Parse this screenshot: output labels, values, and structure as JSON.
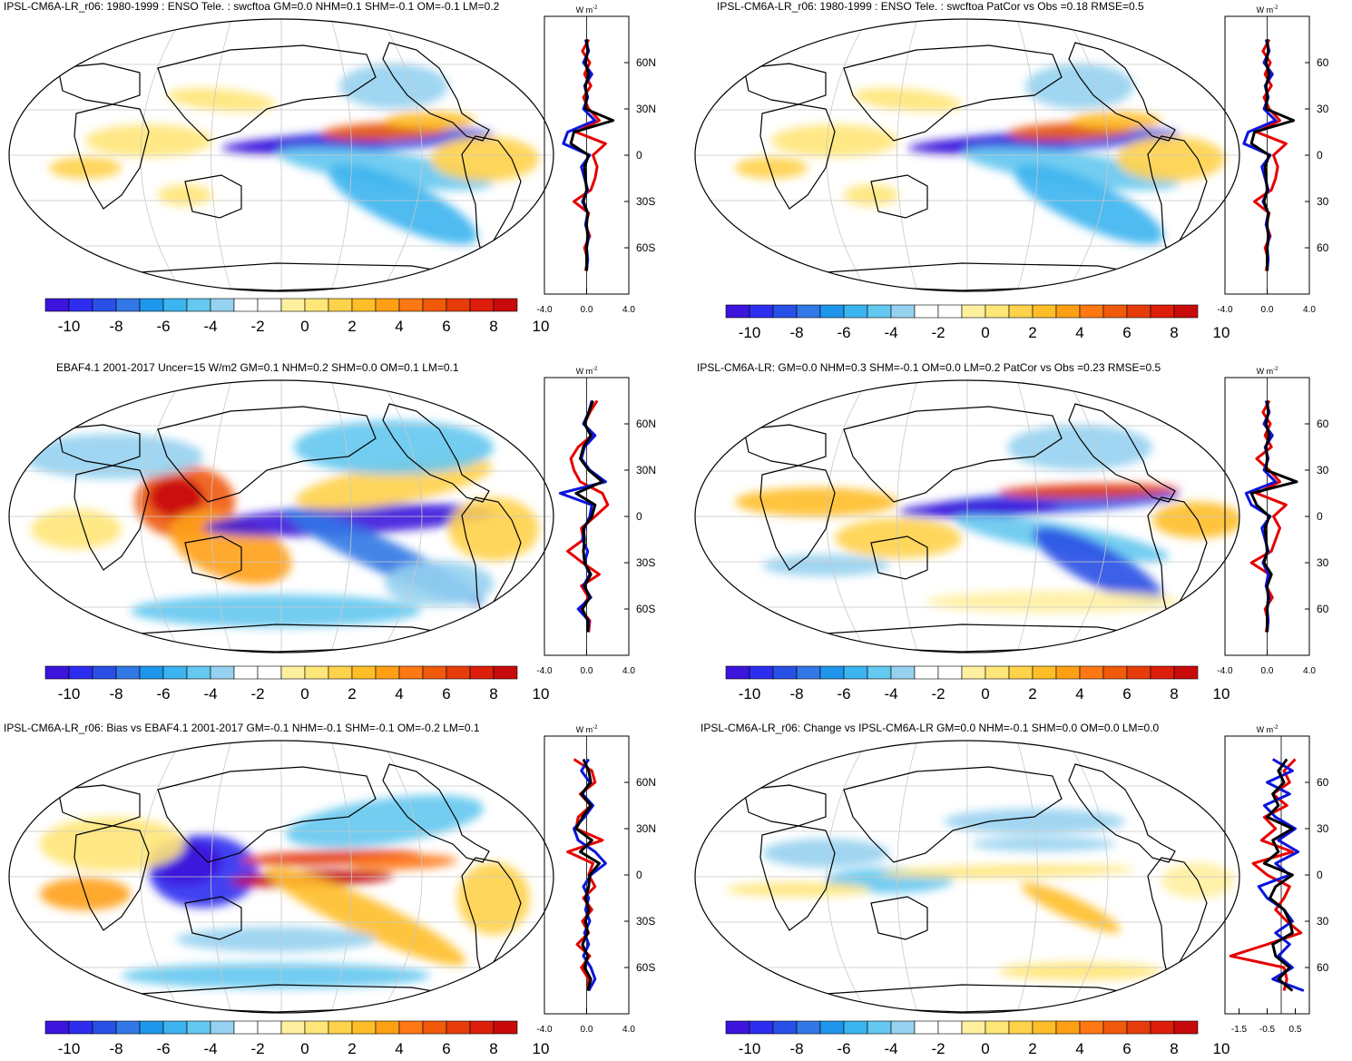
{
  "units_label": "W m",
  "units_exp": "-2",
  "colorbar": {
    "tick_labels": [
      "-10",
      "-8",
      "-6",
      "-4",
      "-2",
      "0",
      "2",
      "4",
      "6",
      "8",
      "10"
    ],
    "colors": [
      "#3c14dc",
      "#2d2df0",
      "#2850e6",
      "#3278e6",
      "#1e96eb",
      "#3cb4f0",
      "#64c8f0",
      "#96d2f0",
      "#ffffff",
      "#ffffff",
      "#fff0a0",
      "#ffe678",
      "#ffd24b",
      "#ffbe28",
      "#ffa014",
      "#ff7814",
      "#f05a0a",
      "#e63c0a",
      "#dc1e0a",
      "#c80a0a"
    ]
  },
  "panels": [
    {
      "title": "IPSL-CM6A-LR_r06: 1980-1999 : ENSO Tele. : swcftoa GM=0.0 NHM=0.1 SHM=-0.1 OM=-0.1 LM=0.2",
      "lat_labels": [
        "60N",
        "30N",
        "0",
        "30S",
        "60S"
      ],
      "x_ticks": [
        "-4.0",
        "0.0",
        "4.0"
      ]
    },
    {
      "title": "IPSL-CM6A-LR_r06: 1980-1999 : ENSO Tele. : swcftoa PatCor vs Obs =0.18 RMSE=0.5",
      "lat_labels": [
        "60",
        "30",
        "0",
        "30",
        "60"
      ],
      "x_ticks": [
        "-4.0",
        "0.0",
        "4.0"
      ]
    },
    {
      "title": "EBAF4.1 2001-2017 Uncer=15 W/m2 GM=0.1 NHM=0.2 SHM=0.0 OM=0.1 LM=0.1",
      "lat_labels": [
        "60N",
        "30N",
        "0",
        "30S",
        "60S"
      ],
      "x_ticks": [
        "-4.0",
        "0.0",
        "4.0"
      ]
    },
    {
      "title": "IPSL-CM6A-LR: GM=0.0 NHM=0.3 SHM=-0.1 OM=0.0 LM=0.2 PatCor vs Obs =0.23 RMSE=0.5",
      "lat_labels": [
        "60",
        "30",
        "0",
        "30",
        "60"
      ],
      "x_ticks": [
        "-4.0",
        "0.0",
        "4.0"
      ]
    },
    {
      "title": "IPSL-CM6A-LR_r06: Bias vs EBAF4.1 2001-2017 GM=-0.1 NHM=-0.1 SHM=-0.1 OM=-0.2 LM=0.1",
      "lat_labels": [
        "60N",
        "30N",
        "0",
        "30S",
        "60S"
      ],
      "x_ticks": [
        "-4.0",
        "0.0",
        "4.0"
      ]
    },
    {
      "title": "IPSL-CM6A-LR_r06: Change vs IPSL-CM6A-LR GM=0.0 NHM=-0.1 SHM=0.0 OM=0.0 LM=0.0",
      "lat_labels": [
        "60",
        "30",
        "0",
        "30",
        "60"
      ],
      "x_ticks": [
        "-1.5",
        "-0.5",
        "0.5"
      ]
    }
  ],
  "zonal_profiles": [
    {
      "red": [
        0.2,
        -0.4,
        0.3,
        -0.2,
        0.4,
        -0.3,
        0.2,
        1.2,
        -1.0,
        1.8,
        0.6,
        1.0,
        0.8,
        0.4,
        -1.2,
        0.2,
        -0.1,
        0.3,
        -0.2,
        0.1,
        -0.1
      ],
      "blue": [
        -0.1,
        0.2,
        -0.3,
        0.5,
        -0.2,
        0.1,
        -0.3,
        0.8,
        -1.8,
        -2.2,
        0.3,
        -0.5,
        -0.2,
        0.1,
        -0.4,
        0.1,
        -0.1,
        0.2,
        0.0,
        0.1,
        0.0
      ],
      "black": [
        0.0,
        0.1,
        -0.1,
        0.2,
        -0.1,
        0.0,
        -0.1,
        2.5,
        -1.2,
        -1.5,
        0.2,
        -0.2,
        -0.1,
        0.0,
        -0.3,
        0.1,
        0.0,
        0.1,
        0.0,
        0.0,
        0.0
      ]
    },
    {
      "red": [
        0.2,
        -0.4,
        0.3,
        -0.2,
        0.4,
        -0.3,
        0.2,
        1.2,
        -1.0,
        1.8,
        0.6,
        1.0,
        0.8,
        0.4,
        -1.2,
        0.2,
        -0.1,
        0.3,
        -0.2,
        0.1,
        -0.1
      ],
      "blue": [
        -0.1,
        0.2,
        -0.3,
        0.5,
        -0.2,
        0.1,
        -0.3,
        0.8,
        -1.8,
        -2.2,
        0.3,
        -0.5,
        -0.2,
        0.1,
        -0.4,
        0.1,
        -0.1,
        0.2,
        0.0,
        0.1,
        0.0
      ],
      "black": [
        0.0,
        0.1,
        -0.1,
        0.2,
        -0.1,
        0.0,
        -0.1,
        2.5,
        -1.2,
        -1.5,
        0.2,
        -0.2,
        -0.1,
        0.0,
        -0.3,
        0.1,
        0.0,
        0.1,
        0.0,
        0.0,
        0.0
      ]
    },
    {
      "red": [
        1.0,
        0.3,
        -0.2,
        0.5,
        -0.8,
        -1.5,
        -1.2,
        -0.6,
        1.5,
        2.0,
        0.8,
        -0.5,
        -0.3,
        -1.8,
        -0.4,
        1.2,
        -0.5,
        0.2,
        -0.6,
        0.3,
        0.2
      ],
      "blue": [
        0.5,
        0.2,
        -0.3,
        0.8,
        -0.2,
        -0.5,
        0.3,
        1.8,
        -2.5,
        0.5,
        0.3,
        -0.2,
        -0.4,
        0.1,
        -0.2,
        0.3,
        -0.3,
        0.4,
        -0.8,
        0.2,
        0.1
      ],
      "black": [
        0.6,
        0.2,
        -0.2,
        0.4,
        -0.3,
        -0.6,
        0.2,
        1.5,
        -1.0,
        0.8,
        0.5,
        -0.3,
        -0.2,
        -0.3,
        -0.2,
        0.4,
        -0.2,
        0.3,
        -0.4,
        0.1,
        0.1
      ]
    },
    {
      "red": [
        0.2,
        -0.4,
        0.3,
        -0.2,
        0.4,
        -1.0,
        0.2,
        1.2,
        -1.0,
        1.8,
        0.6,
        1.2,
        0.8,
        0.4,
        -1.5,
        0.2,
        -0.1,
        0.5,
        -0.2,
        0.1,
        -0.1
      ],
      "blue": [
        -0.1,
        0.2,
        -0.3,
        0.5,
        -0.2,
        0.1,
        -0.3,
        0.8,
        -2.0,
        -1.5,
        0.3,
        -0.5,
        -0.2,
        0.1,
        -0.4,
        0.1,
        -0.1,
        0.2,
        0.0,
        0.1,
        0.0
      ],
      "black": [
        0.0,
        0.1,
        -0.1,
        0.2,
        -0.1,
        0.0,
        -0.1,
        2.8,
        -1.5,
        -1.0,
        0.2,
        -0.2,
        -0.1,
        0.0,
        -0.3,
        0.4,
        0.0,
        0.1,
        0.0,
        0.0,
        0.0
      ]
    },
    {
      "red": [
        -1.2,
        0.5,
        0.8,
        -0.6,
        0.4,
        -0.8,
        -1.0,
        1.5,
        -1.8,
        0.6,
        0.2,
        0.8,
        -0.3,
        0.5,
        -0.4,
        0.2,
        -0.9,
        0.3,
        -0.5,
        0.2,
        0.1
      ],
      "blue": [
        0.2,
        -0.5,
        0.3,
        -0.4,
        0.6,
        -0.2,
        -1.2,
        -0.8,
        0.8,
        1.8,
        0.4,
        -0.3,
        0.2,
        -0.1,
        0.3,
        -0.2,
        0.2,
        -0.3,
        0.4,
        0.8,
        0.2
      ],
      "black": [
        -0.3,
        0.2,
        0.4,
        -0.5,
        0.4,
        -0.4,
        -1.0,
        0.5,
        -0.6,
        1.2,
        0.3,
        0.2,
        -0.1,
        0.2,
        -0.1,
        0.1,
        -0.4,
        0.1,
        -0.2,
        0.4,
        0.1
      ]
    },
    {
      "red": [
        0.5,
        0.1,
        0.3,
        -0.3,
        0.2,
        -0.6,
        -0.2,
        -0.7,
        0.4,
        -1.0,
        -0.5,
        0.3,
        0.1,
        -0.2,
        0.2,
        0.7,
        -0.5,
        -1.8,
        0.1,
        0.2,
        0.1
      ],
      "blue": [
        -0.3,
        0.4,
        -0.5,
        0.3,
        -0.6,
        -0.2,
        0.5,
        -0.1,
        0.6,
        -0.2,
        0.3,
        -0.8,
        -0.5,
        0.1,
        0.4,
        -0.2,
        0.3,
        -0.1,
        0.4,
        -0.3,
        0.8
      ],
      "black": [
        0.2,
        -0.1,
        0.1,
        -0.3,
        -0.1,
        -0.5,
        0.4,
        -0.3,
        -0.1,
        -0.6,
        0.4,
        -0.2,
        -0.4,
        0.1,
        0.3,
        0.4,
        -0.3,
        -0.2,
        0.3,
        -0.1,
        0.4
      ]
    }
  ]
}
